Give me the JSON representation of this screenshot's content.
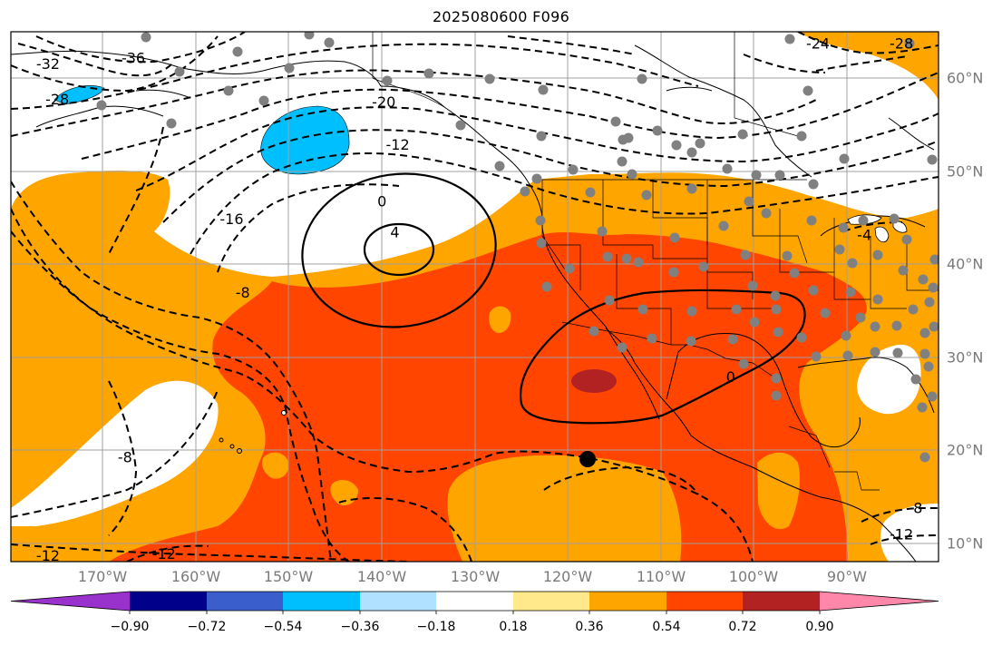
{
  "title": "2025080600 F096",
  "map": {
    "lon_labels": [
      "170°W",
      "160°W",
      "150°W",
      "140°W",
      "130°W",
      "120°W",
      "110°W",
      "100°W",
      "90°W"
    ],
    "lat_labels": [
      "60°N",
      "50°N",
      "40°N",
      "30°N",
      "20°N",
      "10°N"
    ],
    "extent": {
      "lon_min": -180,
      "lon_max": -80,
      "lat_min": 8,
      "lat_max": 65
    },
    "contour_labels": [
      {
        "text": "-32",
        "lon": -176,
        "lat": 61.4
      },
      {
        "text": "-36",
        "lon": -166.8,
        "lat": 62
      },
      {
        "text": "-28",
        "lon": -175,
        "lat": 57.6
      },
      {
        "text": "-20",
        "lon": -139.8,
        "lat": 57.3
      },
      {
        "text": "-12",
        "lon": -138.3,
        "lat": 52.7
      },
      {
        "text": "-16",
        "lon": -156.2,
        "lat": 44.7
      },
      {
        "text": "-8",
        "lon": -155,
        "lat": 36.8
      },
      {
        "text": "-8",
        "lon": -167.7,
        "lat": 19.1
      },
      {
        "text": "-24",
        "lon": -93,
        "lat": 63.6
      },
      {
        "text": "-28",
        "lon": -84,
        "lat": 63.6
      },
      {
        "text": "-8",
        "lon": -82.5,
        "lat": 13.6
      },
      {
        "text": "-12",
        "lon": -84,
        "lat": 10.8
      },
      {
        "text": "-12",
        "lon": -176,
        "lat": 8.5
      },
      {
        "text": "-12",
        "lon": -163.5,
        "lat": 8.7
      },
      {
        "text": "0",
        "lon": -140,
        "lat": 46.6
      },
      {
        "text": "4",
        "lon": -138.6,
        "lat": 43.3
      },
      {
        "text": "0",
        "lon": -102.4,
        "lat": 27.7
      },
      {
        "text": "-4",
        "lon": -88,
        "lat": 43
      }
    ],
    "station_marker": {
      "lon": -117,
      "lat": 19.2
    }
  },
  "colorbar": {
    "tick_labels": [
      "−0.90",
      "−0.72",
      "−0.54",
      "−0.36",
      "−0.18",
      "0.18",
      "0.36",
      "0.54",
      "0.72",
      "0.90"
    ],
    "colors": [
      "#9932cc",
      "#00008b",
      "#3a5fcd",
      "#00bfff",
      "#b0e2ff",
      "#ffffff",
      "#ffe98a",
      "#ffa500",
      "#ff4500",
      "#b22222",
      "#ff88aa"
    ]
  },
  "colors": {
    "ocean_bg": "#ffffff",
    "orange": "#ffa500",
    "red": "#ff4500",
    "darkred": "#b22222",
    "blue": "#00bfff",
    "grid": "#a0a0a0",
    "station": "#808080"
  }
}
